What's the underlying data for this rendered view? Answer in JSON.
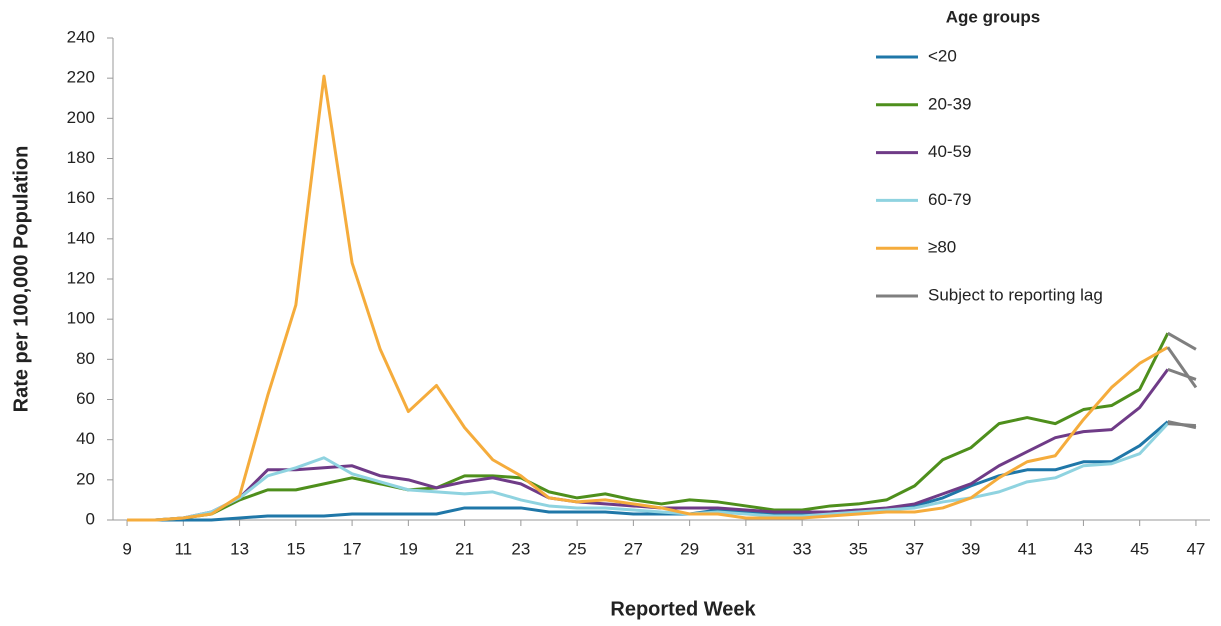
{
  "chart_data": {
    "type": "line",
    "xlabel": "Reported Week",
    "ylabel": "Rate per 100,000 Population",
    "legend_title": "Age groups",
    "legend": "upper right",
    "x": [
      9,
      10,
      11,
      12,
      13,
      14,
      15,
      16,
      17,
      18,
      19,
      20,
      21,
      22,
      23,
      24,
      25,
      26,
      27,
      28,
      29,
      30,
      31,
      32,
      33,
      34,
      35,
      36,
      37,
      38,
      39,
      40,
      41,
      42,
      43,
      44,
      45,
      46,
      47
    ],
    "xlim": [
      8.5,
      47.5
    ],
    "xticks": [
      9,
      11,
      13,
      15,
      17,
      19,
      21,
      23,
      25,
      27,
      29,
      31,
      33,
      35,
      37,
      39,
      41,
      43,
      45,
      47
    ],
    "ylim": [
      0,
      240
    ],
    "yticks": [
      0,
      20,
      40,
      60,
      80,
      100,
      120,
      140,
      160,
      180,
      200,
      220,
      240
    ],
    "series": [
      {
        "name": "<20",
        "color": "#1f77a8",
        "values": [
          0,
          0,
          0,
          0,
          1,
          2,
          2,
          2,
          3,
          3,
          3,
          3,
          6,
          6,
          6,
          4,
          4,
          4,
          3,
          3,
          3,
          5,
          4,
          3,
          3,
          4,
          5,
          5,
          7,
          11,
          17,
          22,
          25,
          25,
          29,
          29,
          37,
          49,
          46
        ]
      },
      {
        "name": "20-39",
        "color": "#4e8f1c",
        "values": [
          0,
          0,
          1,
          3,
          10,
          15,
          15,
          18,
          21,
          18,
          15,
          16,
          22,
          22,
          21,
          14,
          11,
          13,
          10,
          8,
          10,
          9,
          7,
          5,
          5,
          7,
          8,
          10,
          17,
          30,
          36,
          48,
          51,
          48,
          55,
          57,
          65,
          93,
          85
        ]
      },
      {
        "name": "40-59",
        "color": "#6f3b87",
        "values": [
          0,
          0,
          1,
          4,
          11,
          25,
          25,
          26,
          27,
          22,
          20,
          16,
          19,
          21,
          18,
          11,
          9,
          8,
          7,
          6,
          6,
          6,
          5,
          4,
          4,
          4,
          5,
          6,
          8,
          13,
          18,
          27,
          34,
          41,
          44,
          45,
          56,
          75,
          70
        ]
      },
      {
        "name": "60-79",
        "color": "#8fd3e0",
        "values": [
          0,
          0,
          1,
          4,
          11,
          22,
          26,
          31,
          23,
          19,
          15,
          14,
          13,
          14,
          10,
          7,
          6,
          6,
          5,
          4,
          3,
          4,
          3,
          2,
          2,
          3,
          4,
          5,
          6,
          9,
          11,
          14,
          19,
          21,
          27,
          28,
          33,
          48,
          47
        ]
      },
      {
        "name": "≥80",
        "color": "#f5ac3c",
        "values": [
          0,
          0,
          1,
          3,
          12,
          62,
          107,
          221,
          128,
          85,
          54,
          67,
          46,
          30,
          22,
          11,
          9,
          10,
          8,
          6,
          3,
          3,
          1,
          1,
          1,
          2,
          3,
          4,
          4,
          6,
          11,
          21,
          29,
          32,
          50,
          66,
          78,
          86,
          66
        ]
      }
    ],
    "lag": {
      "name": "Subject to reporting lag",
      "color": "#7f7f7f",
      "x": [
        46,
        47
      ]
    }
  }
}
